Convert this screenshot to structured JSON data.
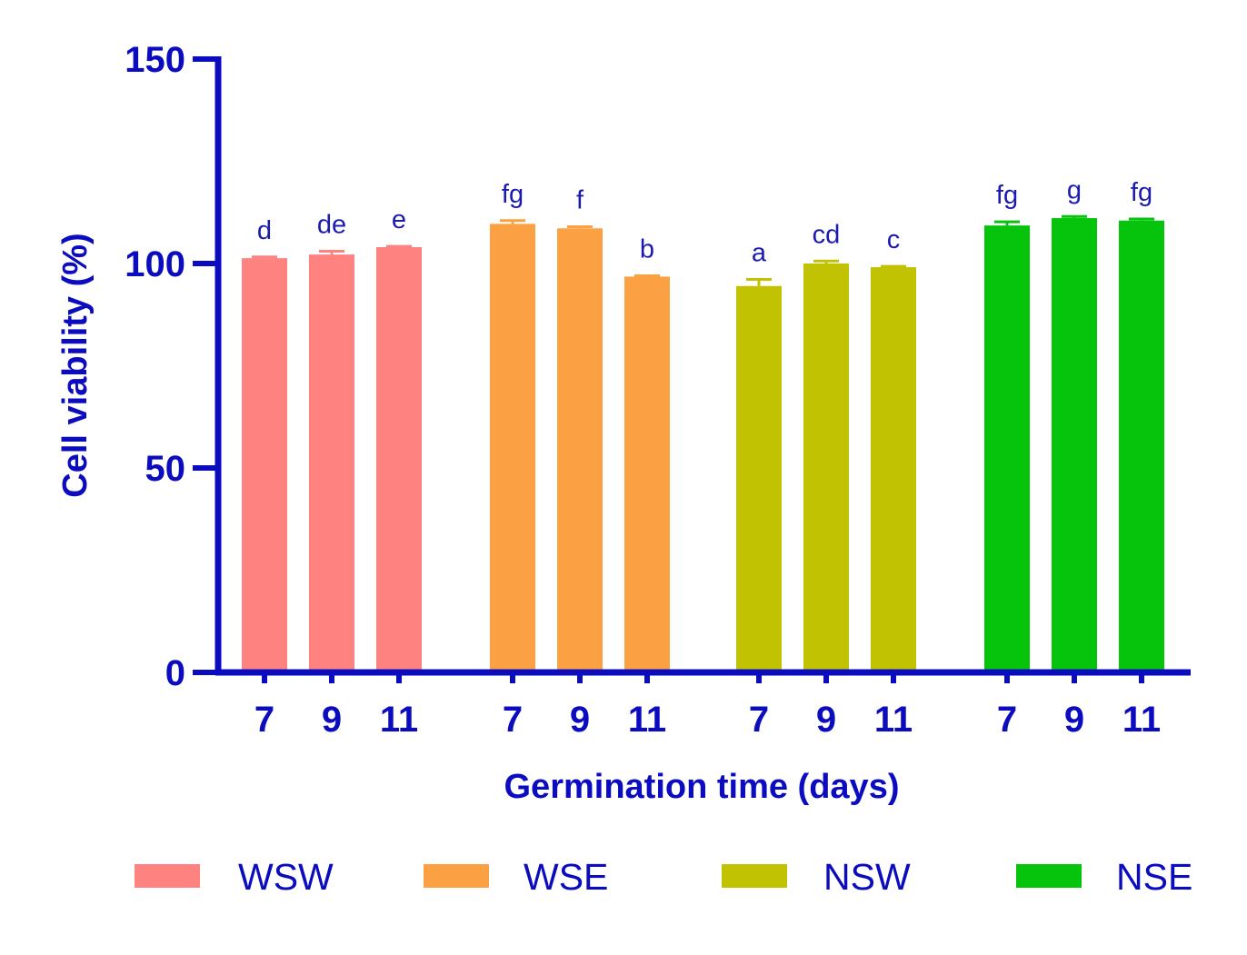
{
  "chart_data": {
    "type": "bar",
    "title": "",
    "xlabel": "Germination time (days)",
    "ylabel": "Cell viability (%)",
    "ylim": [
      0,
      150
    ],
    "yticks": [
      0,
      50,
      100,
      150
    ],
    "axis_color": "#0b0bbf",
    "label_color": "#1b1bb0",
    "groups": [
      {
        "name": "WSW",
        "color": "#fd8280",
        "bars": [
          {
            "day": "7",
            "value": 101.3,
            "error": 0.3,
            "sig": "d"
          },
          {
            "day": "9",
            "value": 102.2,
            "error": 0.8,
            "sig": "de"
          },
          {
            "day": "11",
            "value": 104.0,
            "error": 0.2,
            "sig": "e"
          }
        ]
      },
      {
        "name": "WSE",
        "color": "#fca143",
        "bars": [
          {
            "day": "7",
            "value": 109.7,
            "error": 0.8,
            "sig": "fg"
          },
          {
            "day": "9",
            "value": 108.6,
            "error": 0.4,
            "sig": "f"
          },
          {
            "day": "11",
            "value": 96.8,
            "error": 0.2,
            "sig": "b"
          }
        ]
      },
      {
        "name": "NSW",
        "color": "#c1c302",
        "bars": [
          {
            "day": "7",
            "value": 94.5,
            "error": 1.6,
            "sig": "a"
          },
          {
            "day": "9",
            "value": 100.0,
            "error": 0.6,
            "sig": "cd"
          },
          {
            "day": "11",
            "value": 99.1,
            "error": 0.2,
            "sig": "c"
          }
        ]
      },
      {
        "name": "NSE",
        "color": "#06c30c",
        "bars": [
          {
            "day": "7",
            "value": 109.3,
            "error": 0.9,
            "sig": "fg"
          },
          {
            "day": "9",
            "value": 111.1,
            "error": 0.4,
            "sig": "g"
          },
          {
            "day": "11",
            "value": 110.5,
            "error": 0.4,
            "sig": "fg"
          }
        ]
      }
    ],
    "legend_position": "bottom"
  }
}
